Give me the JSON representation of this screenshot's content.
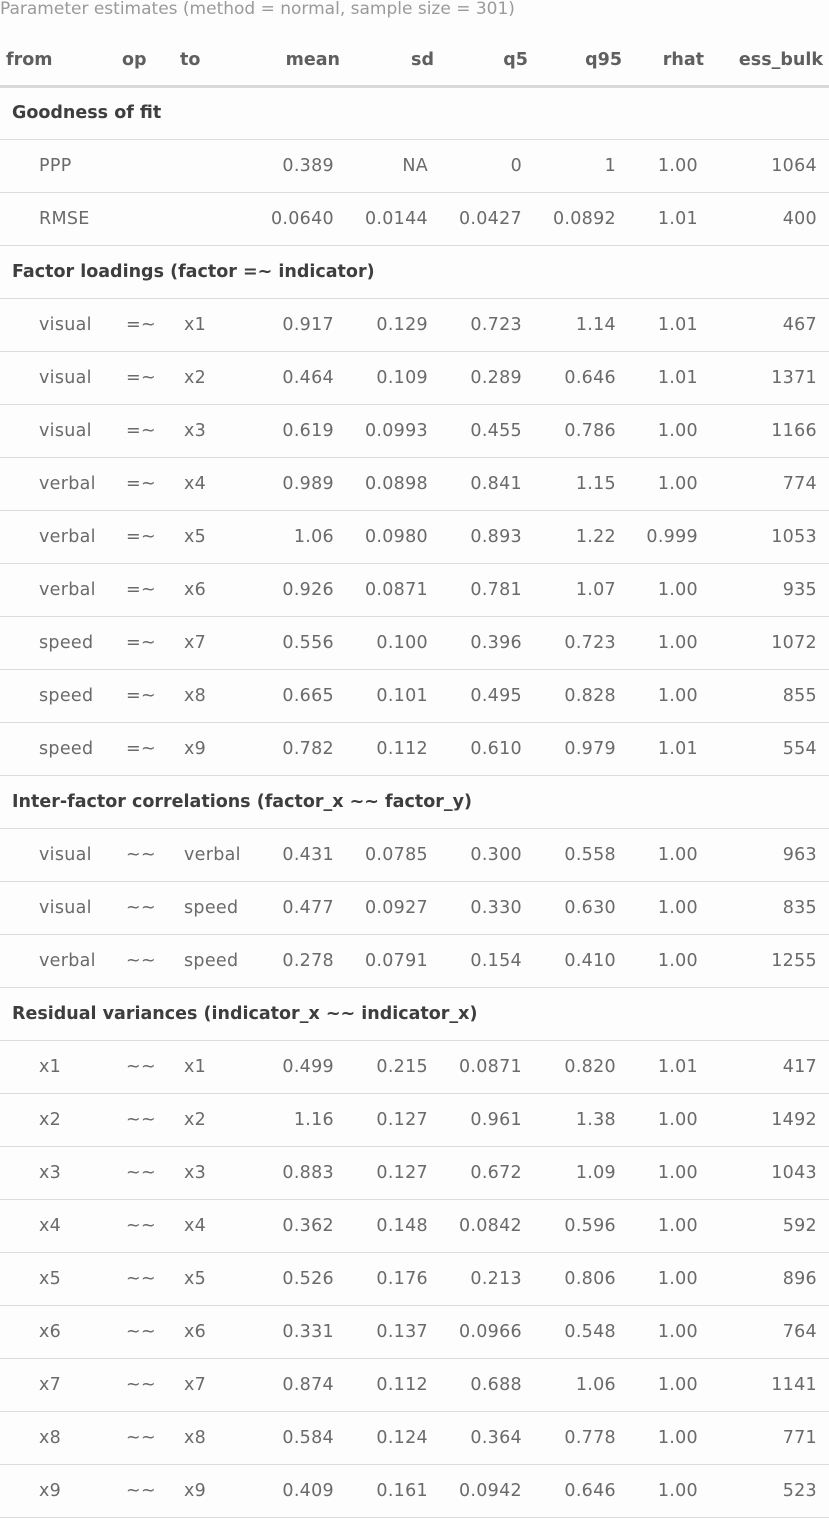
{
  "caption": "Parameter estimates (method = normal, sample size = 301)",
  "columns": [
    "from",
    "op",
    "to",
    "mean",
    "sd",
    "q5",
    "q95",
    "rhat",
    "ess_bulk"
  ],
  "groups": [
    {
      "title": "Goodness of fit",
      "rows": [
        [
          "PPP",
          "",
          "",
          "0.389",
          "NA",
          "0",
          "1",
          "1.00",
          "1064"
        ],
        [
          "RMSE",
          "",
          "",
          "0.0640",
          "0.0144",
          "0.0427",
          "0.0892",
          "1.01",
          "400"
        ]
      ]
    },
    {
      "title": "Factor loadings (factor =~ indicator)",
      "rows": [
        [
          "visual",
          "=~",
          "x1",
          "0.917",
          "0.129",
          "0.723",
          "1.14",
          "1.01",
          "467"
        ],
        [
          "visual",
          "=~",
          "x2",
          "0.464",
          "0.109",
          "0.289",
          "0.646",
          "1.01",
          "1371"
        ],
        [
          "visual",
          "=~",
          "x3",
          "0.619",
          "0.0993",
          "0.455",
          "0.786",
          "1.00",
          "1166"
        ],
        [
          "verbal",
          "=~",
          "x4",
          "0.989",
          "0.0898",
          "0.841",
          "1.15",
          "1.00",
          "774"
        ],
        [
          "verbal",
          "=~",
          "x5",
          "1.06",
          "0.0980",
          "0.893",
          "1.22",
          "0.999",
          "1053"
        ],
        [
          "verbal",
          "=~",
          "x6",
          "0.926",
          "0.0871",
          "0.781",
          "1.07",
          "1.00",
          "935"
        ],
        [
          "speed",
          "=~",
          "x7",
          "0.556",
          "0.100",
          "0.396",
          "0.723",
          "1.00",
          "1072"
        ],
        [
          "speed",
          "=~",
          "x8",
          "0.665",
          "0.101",
          "0.495",
          "0.828",
          "1.00",
          "855"
        ],
        [
          "speed",
          "=~",
          "x9",
          "0.782",
          "0.112",
          "0.610",
          "0.979",
          "1.01",
          "554"
        ]
      ]
    },
    {
      "title": "Inter-factor correlations (factor_x ~~ factor_y)",
      "rows": [
        [
          "visual",
          "~~",
          "verbal",
          "0.431",
          "0.0785",
          "0.300",
          "0.558",
          "1.00",
          "963"
        ],
        [
          "visual",
          "~~",
          "speed",
          "0.477",
          "0.0927",
          "0.330",
          "0.630",
          "1.00",
          "835"
        ],
        [
          "verbal",
          "~~",
          "speed",
          "0.278",
          "0.0791",
          "0.154",
          "0.410",
          "1.00",
          "1255"
        ]
      ]
    },
    {
      "title": "Residual variances (indicator_x ~~ indicator_x)",
      "rows": [
        [
          "x1",
          "~~",
          "x1",
          "0.499",
          "0.215",
          "0.0871",
          "0.820",
          "1.01",
          "417"
        ],
        [
          "x2",
          "~~",
          "x2",
          "1.16",
          "0.127",
          "0.961",
          "1.38",
          "1.00",
          "1492"
        ],
        [
          "x3",
          "~~",
          "x3",
          "0.883",
          "0.127",
          "0.672",
          "1.09",
          "1.00",
          "1043"
        ],
        [
          "x4",
          "~~",
          "x4",
          "0.362",
          "0.148",
          "0.0842",
          "0.596",
          "1.00",
          "592"
        ],
        [
          "x5",
          "~~",
          "x5",
          "0.526",
          "0.176",
          "0.213",
          "0.806",
          "1.00",
          "896"
        ],
        [
          "x6",
          "~~",
          "x6",
          "0.331",
          "0.137",
          "0.0966",
          "0.548",
          "1.00",
          "764"
        ],
        [
          "x7",
          "~~",
          "x7",
          "0.874",
          "0.112",
          "0.688",
          "1.06",
          "1.00",
          "1141"
        ],
        [
          "x8",
          "~~",
          "x8",
          "0.584",
          "0.124",
          "0.364",
          "0.778",
          "1.00",
          "771"
        ],
        [
          "x9",
          "~~",
          "x9",
          "0.409",
          "0.161",
          "0.0942",
          "0.646",
          "1.00",
          "523"
        ]
      ]
    }
  ]
}
